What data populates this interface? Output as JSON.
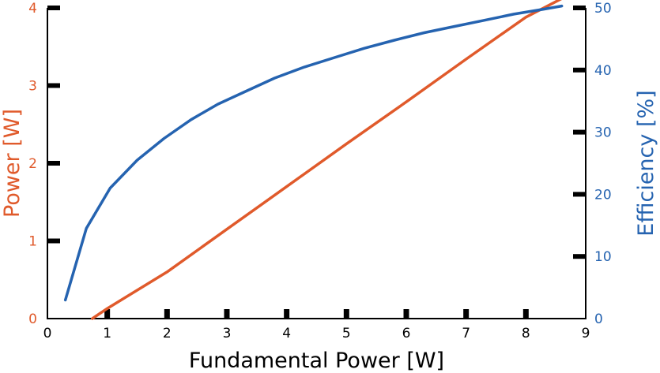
{
  "colors": {
    "power": "#e05a2b",
    "efficiency": "#2563b0",
    "axis": "#000000"
  },
  "chart_data": {
    "type": "line",
    "xlabel": "Fundamental Power [W]",
    "ylabel_left": "Power [W]",
    "ylabel_right": "Efficiency [%]",
    "xlim": [
      0,
      9
    ],
    "ylim_left": [
      0,
      4
    ],
    "ylim_right": [
      0,
      50
    ],
    "x_ticks": [
      "0",
      "1",
      "2",
      "3",
      "4",
      "5",
      "6",
      "7",
      "8",
      "9"
    ],
    "y_left_ticks": [
      "0",
      "1",
      "2",
      "3",
      "4"
    ],
    "y_right_ticks": [
      "0",
      "10",
      "20",
      "30",
      "40",
      "50"
    ],
    "grid": false,
    "series": [
      {
        "axis": "left",
        "x": [
          0.75,
          1.0,
          2.0,
          3.0,
          4.0,
          5.0,
          6.0,
          7.0,
          8.0,
          8.6
        ],
        "values": [
          0.0,
          0.13,
          0.6,
          1.15,
          1.7,
          2.25,
          2.79,
          3.34,
          3.88,
          4.12
        ]
      },
      {
        "axis": "right",
        "x": [
          0.3,
          0.65,
          1.05,
          1.5,
          1.95,
          2.4,
          2.85,
          3.3,
          3.8,
          4.3,
          4.8,
          5.3,
          5.8,
          6.3,
          6.8,
          7.3,
          7.8,
          8.3,
          8.6
        ],
        "values": [
          3.0,
          14.5,
          21.0,
          25.5,
          29.0,
          32.0,
          34.5,
          36.5,
          38.7,
          40.5,
          42.0,
          43.5,
          44.8,
          46.0,
          47.0,
          48.0,
          49.0,
          49.8,
          50.3
        ]
      }
    ]
  }
}
